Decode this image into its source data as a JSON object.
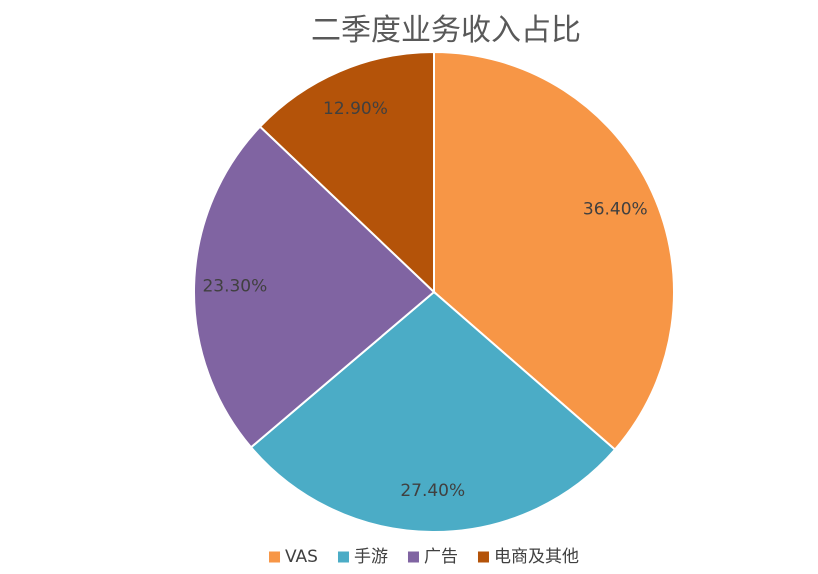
{
  "chart_data": {
    "type": "pie",
    "title": "二季度业务收入占比",
    "categories": [
      "VAS",
      "手游",
      "广告",
      "电商及其他"
    ],
    "values": [
      36.4,
      27.4,
      23.3,
      12.9
    ],
    "labels": [
      "36.40%",
      "27.40%",
      "23.30%",
      "12.90%"
    ],
    "colors": [
      "#F79646",
      "#4BACC6",
      "#8064A2",
      "#B45309"
    ],
    "start_angle_deg": 0,
    "direction": "clockwise",
    "legend_position": "bottom"
  }
}
